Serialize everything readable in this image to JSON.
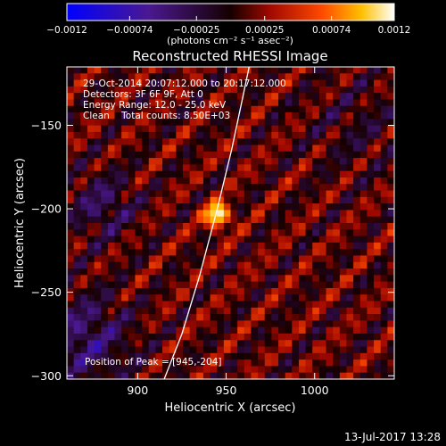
{
  "chart_data": {
    "type": "heatmap",
    "title": "Reconstructed RHESSI Image",
    "xlabel": "Heliocentric X (arcsec)",
    "ylabel": "Heliocentric Y (arcsec)",
    "xlim": [
      860,
      1045
    ],
    "ylim": [
      -302,
      -115
    ],
    "x_ticks": [
      {
        "value": 900,
        "label": "900"
      },
      {
        "value": 950,
        "label": "950"
      },
      {
        "value": 1000,
        "label": "1000"
      }
    ],
    "y_ticks": [
      {
        "value": -150,
        "label": "−150"
      },
      {
        "value": -200,
        "label": "−200"
      },
      {
        "value": -250,
        "label": "−250"
      },
      {
        "value": -300,
        "label": "−300"
      }
    ],
    "colorbar": {
      "range": [
        -0.0012,
        0.0012
      ],
      "ticks": [
        {
          "value": -0.0012,
          "label": "−0.0012"
        },
        {
          "value": -0.00074,
          "label": "−0.00074"
        },
        {
          "value": -0.00025,
          "label": "−0.00025"
        },
        {
          "value": 0.00025,
          "label": "0.00025"
        },
        {
          "value": 0.00074,
          "label": "0.00074"
        },
        {
          "value": 0.0012,
          "label": "0.0012"
        }
      ],
      "unit_label": "(photons cm⁻² s⁻¹ asec⁻²)",
      "colors": [
        "#0000ff",
        "#5a1a8a",
        "#1a0000",
        "#b01000",
        "#ff5a00",
        "#ffd000",
        "#ffffff"
      ]
    },
    "annotations": [
      "29-Oct-2014 20:07:12.000 to 20:17:12.000",
      "Detectors: 3F 6F 9F, Att 0",
      "Energy Range: 12.0 - 25.0 keV",
      "Clean    Total counts: 8.50E+03"
    ],
    "peak_label": "Position of Peak = [945,-204]",
    "peak": [
      945,
      -204
    ],
    "limb_curve": [
      [
        915,
        -302
      ],
      [
        925,
        -275
      ],
      [
        935,
        -240
      ],
      [
        945,
        -200
      ],
      [
        953,
        -165
      ],
      [
        960,
        -130
      ],
      [
        963,
        -115
      ]
    ]
  },
  "timestamp": "13-Jul-2017 13:28"
}
